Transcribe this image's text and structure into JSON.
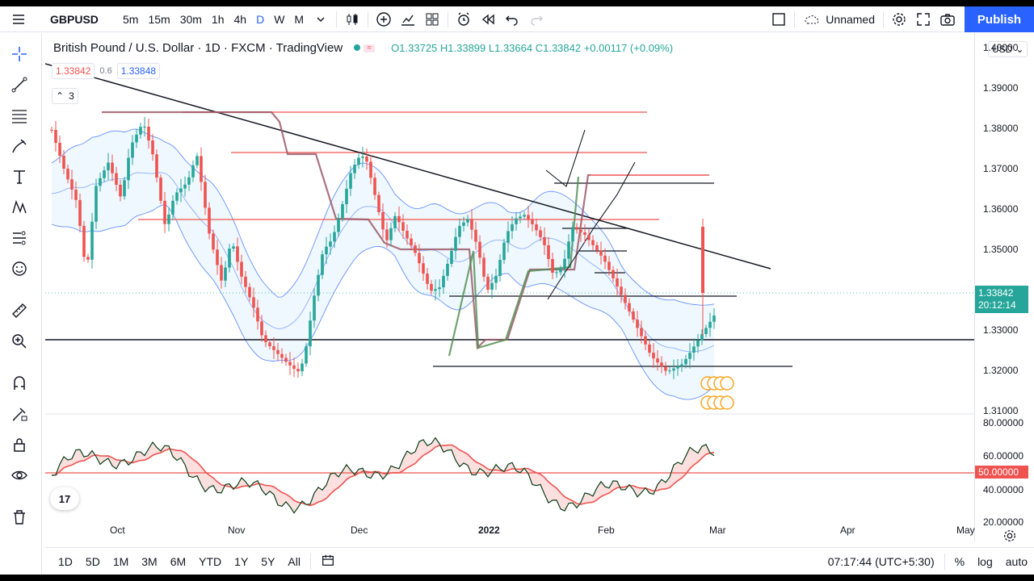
{
  "topbar": {
    "symbol": "GBPUSD",
    "intervals": [
      "5m",
      "15m",
      "30m",
      "1h",
      "4h",
      "D",
      "W",
      "M"
    ],
    "active_interval": "D",
    "layout_name": "Unnamed",
    "publish_label": "Publish"
  },
  "legend": {
    "title": "British Pound / U.S. Dollar · 1D · FXCM · TradingView",
    "ohlc": "O1.33725 H1.33899 L1.33664 C1.33842 +0.00117 (+0.09%)",
    "sell": "1.33842",
    "spread": "0.6",
    "buy": "1.33848",
    "collapse_count": "3"
  },
  "price_scale": {
    "currency": "USD",
    "labels": [
      "1.40000",
      "1.39000",
      "1.38000",
      "1.37000",
      "1.36000",
      "1.35000",
      "1.34000",
      "1.33000",
      "1.32000",
      "1.31000"
    ],
    "last_price": "1.33842",
    "countdown": "20:12:14"
  },
  "osc_scale": {
    "labels": [
      "80.00000",
      "60.00000",
      "40.00000",
      "20.00000"
    ],
    "level": "50.00000"
  },
  "time_axis": [
    "Oct",
    "Nov",
    "Dec",
    "2022",
    "Feb",
    "Mar",
    "Apr",
    "May"
  ],
  "bottombar": {
    "ranges": [
      "1D",
      "5D",
      "1M",
      "3M",
      "6M",
      "YTD",
      "1Y",
      "5Y",
      "All"
    ],
    "clock": "07:17:44 (UTC+5:30)",
    "percent": "%",
    "log": "log",
    "auto": "auto"
  },
  "colors": {
    "up": "#26a69a",
    "down": "#ef5350",
    "accent": "#2962ff"
  }
}
